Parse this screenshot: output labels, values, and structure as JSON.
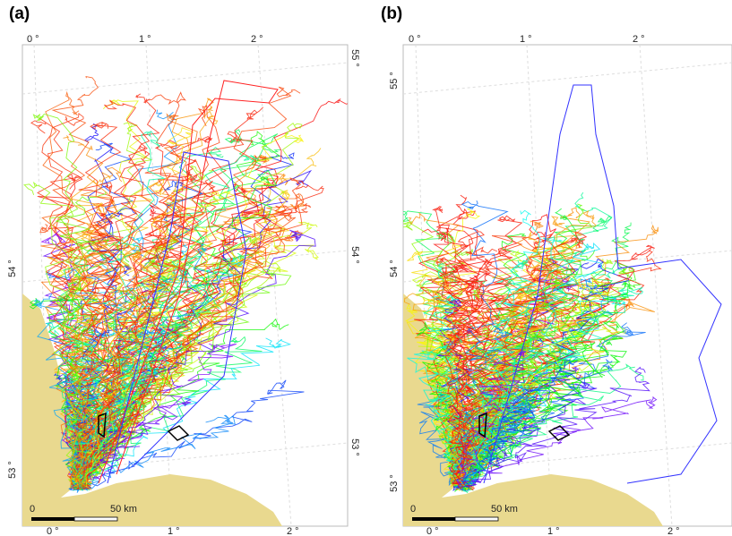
{
  "panels": [
    {
      "label": "(a)",
      "top_labels": [
        "0 °",
        "1 °",
        "2 °"
      ],
      "bottom_labels": [
        "0 °",
        "1 °",
        "2 °"
      ],
      "left_labels": [
        "54 °",
        "53 °"
      ],
      "right_labels": [
        "55 °",
        "54 °",
        "53 °"
      ],
      "scale_bar": {
        "start": "0",
        "end": "50 km"
      }
    },
    {
      "label": "(b)",
      "top_labels": [
        "0 °",
        "1 °",
        "2 °"
      ],
      "bottom_labels": [
        "0 °",
        "1 °",
        "2 °"
      ],
      "left_labels": [
        "55 °",
        "54 °",
        "53 °"
      ],
      "right_labels": [],
      "scale_bar": {
        "start": "0",
        "end": "50 km"
      }
    }
  ]
}
